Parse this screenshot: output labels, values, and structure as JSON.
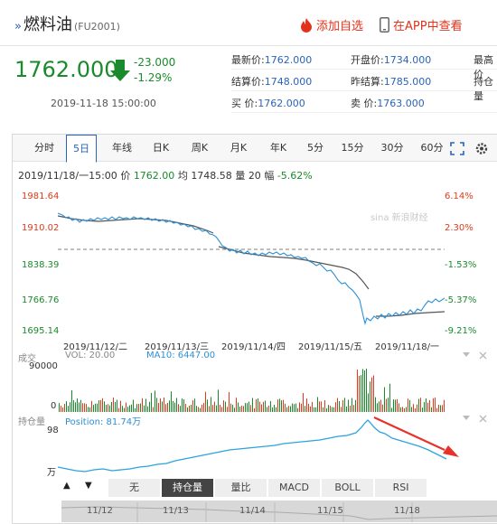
{
  "header": {
    "title": "燃料油",
    "code": "(FU2001)",
    "add_fav": "添加自选",
    "view_app": "在APP中查看"
  },
  "quote": {
    "price": "1762.000",
    "change": "-23.000",
    "change_pct": "-1.29%",
    "time": "2019-11-18 15:00:00",
    "fields": [
      {
        "label": "最新价:",
        "value": "1762.000"
      },
      {
        "label": "开盘价:",
        "value": "1734.000"
      },
      {
        "label": "最高价",
        "value": ""
      },
      {
        "label": "结算价:",
        "value": "1748.000"
      },
      {
        "label": "昨结算:",
        "value": "1785.000"
      },
      {
        "label": "持仓量",
        "value": ""
      },
      {
        "label": "买 价:",
        "value": "1762.000"
      },
      {
        "label": "卖 价:",
        "value": "1763.000"
      },
      {
        "label": "",
        "value": ""
      }
    ]
  },
  "tabs": [
    "分时",
    "5日",
    "年线",
    "日K",
    "周K",
    "月K",
    "年K",
    "5分",
    "15分",
    "30分",
    "60分"
  ],
  "active_tab": "5日",
  "info_bar": {
    "datetime": "2019/11/18/一15:00",
    "price_label": "价",
    "price": "1762.00",
    "avg_label": "均",
    "avg": "1748.58",
    "vol_label": "量",
    "vol": "20",
    "amp_label": "幅",
    "amp": "-5.62%"
  },
  "price_axis_left": [
    "1981.64",
    "1910.02",
    "1838.39",
    "1766.76",
    "1695.14"
  ],
  "price_axis_right": [
    "6.14%",
    "2.30%",
    "-1.53%",
    "-5.37%",
    "-9.21%"
  ],
  "x_labels": [
    "2019/11/12/二",
    "2019/11/13/三",
    "2019/11/14/四",
    "2019/11/15/五",
    "2019/11/18/一"
  ],
  "watermark": "sina 新浪财经",
  "volume_panel": {
    "title": "成交",
    "vol_text": "VOL: 20.00",
    "ma_text": "MA10: 6447.00",
    "top_tick": "90000",
    "bottom_tick": "0"
  },
  "oi_panel": {
    "title": "持仓量",
    "pos_text": "Position: 81.74万",
    "top_tick": "98",
    "bottom_tick": "万"
  },
  "indicators": [
    "无",
    "持仓量",
    "量比",
    "MACD",
    "BOLL",
    "RSI"
  ],
  "active_indicator": "持仓量",
  "scroll_labels": [
    "11/12",
    "11/13",
    "11/14",
    "11/15",
    "11/18"
  ],
  "colors": {
    "up": "#e03a1a",
    "down": "#1a8a2c",
    "price_line": "#2c8fd6",
    "avg_line": "#555555",
    "oi_line": "#2ca3e0",
    "arrow": "#1a8a2c"
  },
  "icons": [
    "down-arrow-icon",
    "flame-icon",
    "phone-icon",
    "fullscreen-icon",
    "settings-icon",
    "panel-close-icon"
  ]
}
